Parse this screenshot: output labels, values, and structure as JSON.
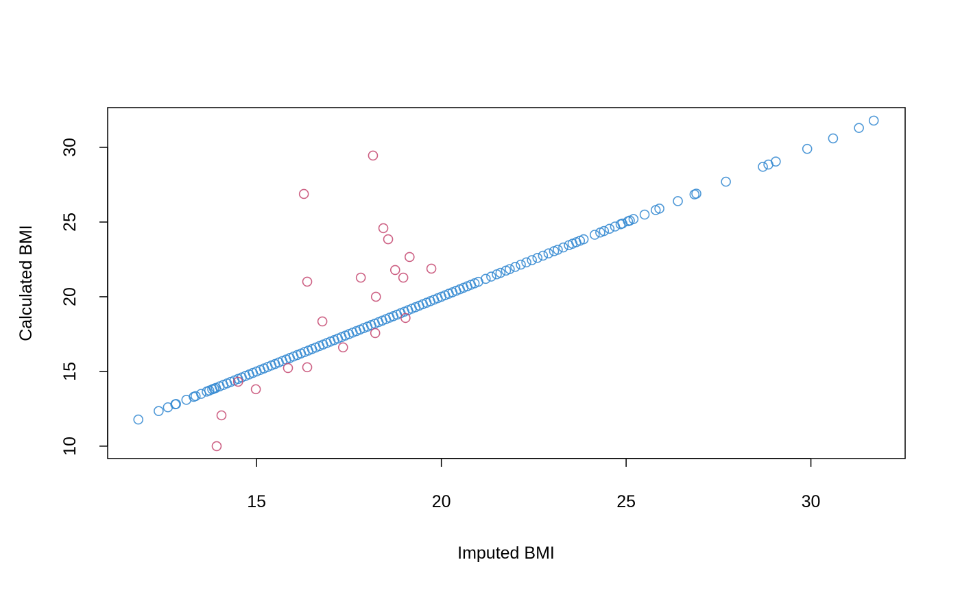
{
  "chart_data": {
    "type": "scatter",
    "xlabel": "Imputed BMI",
    "ylabel": "Calculated BMI",
    "xlim": [
      10.97,
      32.55
    ],
    "ylim": [
      9.17,
      32.66
    ],
    "xticks": [
      15,
      20,
      25,
      30
    ],
    "yticks": [
      10,
      15,
      20,
      25,
      30
    ],
    "grid": false,
    "series": [
      {
        "color": "#2f86d0",
        "x": [
          11.8,
          12.35,
          12.6,
          12.8,
          12.82,
          13.1,
          13.3,
          13.35,
          13.5,
          13.65,
          13.72,
          13.8,
          13.85,
          13.9,
          14,
          14.1,
          14.2,
          14.3,
          14.4,
          14.5,
          14.6,
          14.7,
          14.8,
          14.9,
          15,
          15.1,
          15.2,
          15.3,
          15.4,
          15.5,
          15.6,
          15.7,
          15.8,
          15.9,
          16,
          16.1,
          16.2,
          16.3,
          16.4,
          16.5,
          16.6,
          16.7,
          16.8,
          16.9,
          17,
          17.1,
          17.2,
          17.3,
          17.4,
          17.5,
          17.6,
          17.7,
          17.8,
          17.9,
          18,
          18.1,
          18.2,
          18.3,
          18.4,
          18.5,
          18.6,
          18.7,
          18.8,
          18.9,
          19,
          19.1,
          19.2,
          19.3,
          19.4,
          19.5,
          19.6,
          19.7,
          19.8,
          19.9,
          20,
          20.1,
          20.2,
          20.3,
          20.4,
          20.5,
          20.6,
          20.7,
          20.8,
          20.9,
          21,
          21.2,
          21.35,
          21.5,
          21.6,
          21.75,
          21.85,
          22,
          22.15,
          22.3,
          22.45,
          22.6,
          22.75,
          22.9,
          23.05,
          23.15,
          23.3,
          23.45,
          23.55,
          23.65,
          23.75,
          23.85,
          24.15,
          24.3,
          24.4,
          24.55,
          24.7,
          24.85,
          24.9,
          25.05,
          25.1,
          25.2,
          25.5,
          25.8,
          25.9,
          26.4,
          26.85,
          26.9,
          27.7,
          28.7,
          28.85,
          29.05,
          29.9,
          30.6,
          31.3,
          31.7
        ],
        "values": [
          11.78,
          12.35,
          12.6,
          12.8,
          12.82,
          13.1,
          13.3,
          13.35,
          13.5,
          13.65,
          13.72,
          13.8,
          13.85,
          13.9,
          14,
          14.1,
          14.2,
          14.3,
          14.4,
          14.5,
          14.6,
          14.7,
          14.8,
          14.9,
          15,
          15.1,
          15.2,
          15.3,
          15.4,
          15.5,
          15.6,
          15.7,
          15.8,
          15.9,
          16,
          16.1,
          16.2,
          16.3,
          16.4,
          16.5,
          16.6,
          16.7,
          16.8,
          16.9,
          17,
          17.1,
          17.2,
          17.3,
          17.4,
          17.5,
          17.6,
          17.7,
          17.8,
          17.9,
          18,
          18.1,
          18.2,
          18.3,
          18.4,
          18.5,
          18.6,
          18.7,
          18.8,
          18.9,
          19,
          19.1,
          19.2,
          19.3,
          19.4,
          19.5,
          19.6,
          19.7,
          19.8,
          19.9,
          20,
          20.1,
          20.2,
          20.3,
          20.4,
          20.5,
          20.6,
          20.7,
          20.8,
          20.9,
          21,
          21.2,
          21.35,
          21.5,
          21.6,
          21.75,
          21.85,
          22,
          22.15,
          22.3,
          22.45,
          22.6,
          22.75,
          22.9,
          23.05,
          23.15,
          23.3,
          23.45,
          23.55,
          23.65,
          23.75,
          23.85,
          24.15,
          24.3,
          24.4,
          24.55,
          24.7,
          24.85,
          24.9,
          25.05,
          25.1,
          25.2,
          25.5,
          25.8,
          25.9,
          26.4,
          26.85,
          26.9,
          27.7,
          28.7,
          28.85,
          29.05,
          29.9,
          30.6,
          31.3,
          31.79
        ]
      },
      {
        "color": "#c4456f",
        "x": [
          18.15,
          16.28,
          18.43,
          18.56,
          19.14,
          19.73,
          18.75,
          16.37,
          17.82,
          18.97,
          18.23,
          16.78,
          19.03,
          18.21,
          17.34,
          15.85,
          16.37,
          14.5,
          14.98,
          14.05,
          13.92
        ],
        "values": [
          29.45,
          26.88,
          24.59,
          23.85,
          22.66,
          21.88,
          21.79,
          21.01,
          21.28,
          21.28,
          20.0,
          18.35,
          18.58,
          17.57,
          16.61,
          15.23,
          15.28,
          14.31,
          13.81,
          12.06,
          10.0
        ]
      }
    ]
  }
}
